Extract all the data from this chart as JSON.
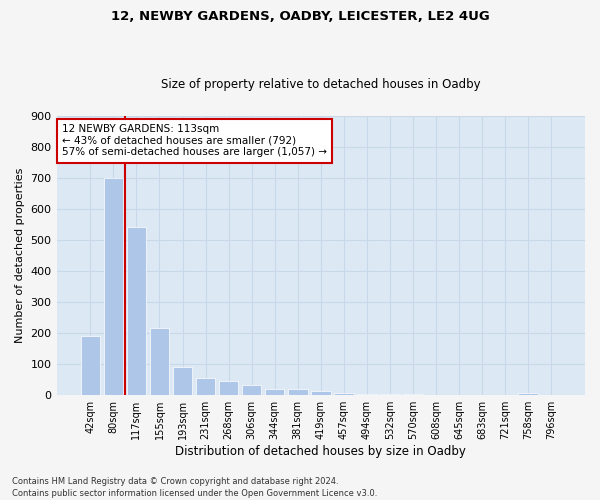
{
  "title1": "12, NEWBY GARDENS, OADBY, LEICESTER, LE2 4UG",
  "title2": "Size of property relative to detached houses in Oadby",
  "xlabel": "Distribution of detached houses by size in Oadby",
  "ylabel": "Number of detached properties",
  "categories": [
    "42sqm",
    "80sqm",
    "117sqm",
    "155sqm",
    "193sqm",
    "231sqm",
    "268sqm",
    "306sqm",
    "344sqm",
    "381sqm",
    "419sqm",
    "457sqm",
    "494sqm",
    "532sqm",
    "570sqm",
    "608sqm",
    "645sqm",
    "683sqm",
    "721sqm",
    "758sqm",
    "796sqm"
  ],
  "values": [
    190,
    700,
    540,
    215,
    90,
    55,
    45,
    30,
    18,
    17,
    12,
    5,
    3,
    3,
    3,
    0,
    0,
    0,
    0,
    5,
    0
  ],
  "bar_color": "#aec6e8",
  "vline_color": "#cc0000",
  "vline_pos": 1.5,
  "annotation_text": "12 NEWBY GARDENS: 113sqm\n← 43% of detached houses are smaller (792)\n57% of semi-detached houses are larger (1,057) →",
  "annotation_box_color": "#ffffff",
  "annotation_box_edge": "#cc0000",
  "ylim": [
    0,
    900
  ],
  "yticks": [
    0,
    100,
    200,
    300,
    400,
    500,
    600,
    700,
    800,
    900
  ],
  "grid_color": "#c8d8e8",
  "bg_color": "#dce9f5",
  "fig_bg_color": "#f5f5f5",
  "footer1": "Contains HM Land Registry data © Crown copyright and database right 2024.",
  "footer2": "Contains public sector information licensed under the Open Government Licence v3.0."
}
